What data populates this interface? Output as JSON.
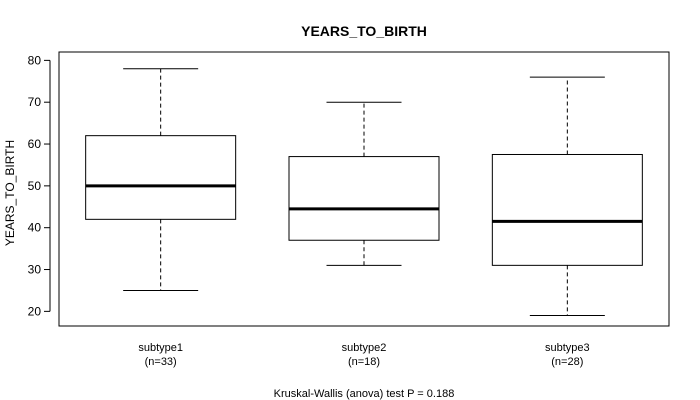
{
  "chart_data": {
    "type": "boxplot",
    "title": "YEARS_TO_BIRTH",
    "ylabel": "YEARS_TO_BIRTH",
    "xlabel": "",
    "ylim": [
      16.5,
      82
    ],
    "yticks": [
      20,
      30,
      40,
      50,
      60,
      70,
      80
    ],
    "ytick_labels": [
      "20",
      "30",
      "40",
      "50",
      "60",
      "70",
      "80"
    ],
    "grid": false,
    "categories": [
      {
        "name": "subtype1",
        "count_label": "(n=33)",
        "min": 25,
        "q1": 42,
        "median": 50,
        "q3": 62,
        "max": 78
      },
      {
        "name": "subtype2",
        "count_label": "(n=18)",
        "min": 31,
        "q1": 37,
        "median": 44.5,
        "q3": 57,
        "max": 70
      },
      {
        "name": "subtype3",
        "count_label": "(n=28)",
        "min": 19,
        "q1": 31,
        "median": 41.5,
        "q3": 57.5,
        "max": 76
      }
    ],
    "footnote": "Kruskal-Wallis (anova) test P = 0.188"
  }
}
